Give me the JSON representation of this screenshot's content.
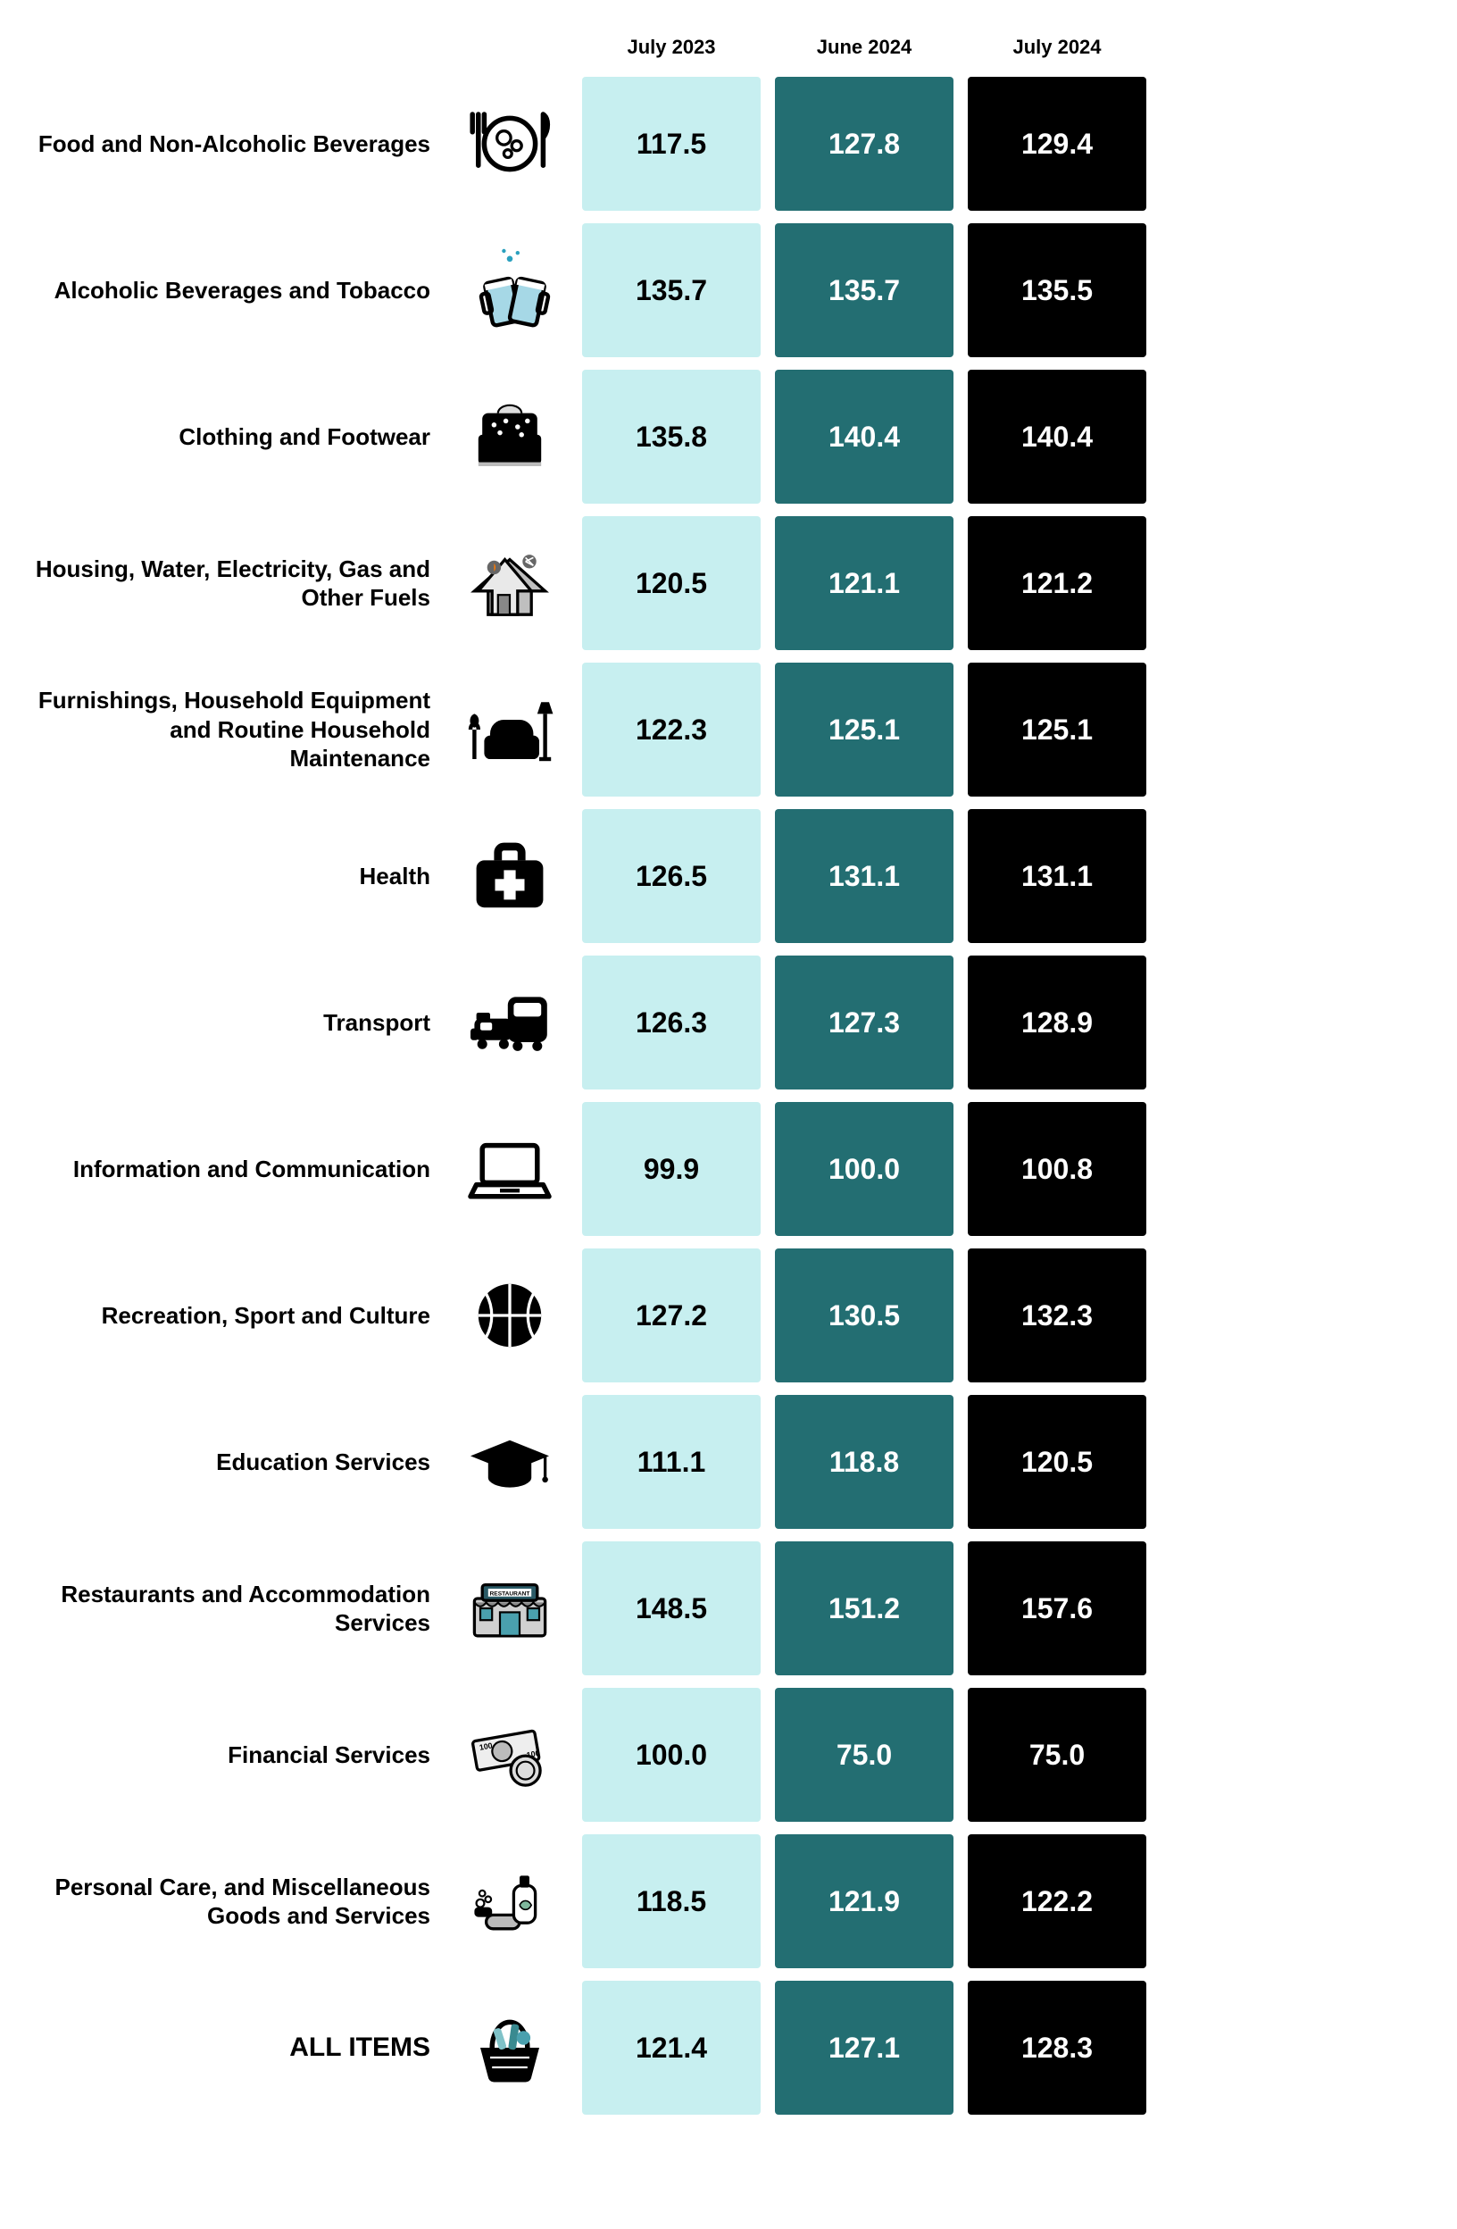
{
  "type": "table",
  "background_color": "#ffffff",
  "columns": [
    {
      "key": "jul2023",
      "label": "July 2023",
      "bg": "#c7eff0",
      "text": "#000000"
    },
    {
      "key": "jun2024",
      "label": "June 2024",
      "bg": "#236e72",
      "text": "#ffffff"
    },
    {
      "key": "jul2024",
      "label": "July 2024",
      "bg": "#000000",
      "text": "#ffffff"
    }
  ],
  "label_fontsize": 26,
  "value_fontsize": 32,
  "header_fontsize": 22,
  "rows": [
    {
      "label": "Food and Non-Alcoholic Beverages",
      "icon": "food",
      "jul2023": "117.5",
      "jun2024": "127.8",
      "jul2024": "129.4"
    },
    {
      "label": "Alcoholic Beverages and Tobacco",
      "icon": "beer",
      "jul2023": "135.7",
      "jun2024": "135.7",
      "jul2024": "135.5"
    },
    {
      "label": "Clothing and Footwear",
      "icon": "clothes",
      "jul2023": "135.8",
      "jun2024": "140.4",
      "jul2024": "140.4"
    },
    {
      "label": "Housing, Water, Electricity, Gas and Other Fuels",
      "icon": "house",
      "jul2023": "120.5",
      "jun2024": "121.1",
      "jul2024": "121.2"
    },
    {
      "label": "Furnishings, Household Equipment and Routine Household Maintenance",
      "icon": "sofa",
      "jul2023": "122.3",
      "jun2024": "125.1",
      "jul2024": "125.1"
    },
    {
      "label": "Health",
      "icon": "health",
      "jul2023": "126.5",
      "jun2024": "131.1",
      "jul2024": "131.1"
    },
    {
      "label": "Transport",
      "icon": "transport",
      "jul2023": "126.3",
      "jun2024": "127.3",
      "jul2024": "128.9"
    },
    {
      "label": "Information and Communication",
      "icon": "laptop",
      "jul2023": "99.9",
      "jun2024": "100.0",
      "jul2024": "100.8"
    },
    {
      "label": "Recreation, Sport and Culture",
      "icon": "ball",
      "jul2023": "127.2",
      "jun2024": "130.5",
      "jul2024": "132.3"
    },
    {
      "label": "Education Services",
      "icon": "grad",
      "jul2023": "111.1",
      "jun2024": "118.8",
      "jul2024": "120.5"
    },
    {
      "label": "Restaurants and Accommodation Services",
      "icon": "restaurant",
      "jul2023": "148.5",
      "jun2024": "151.2",
      "jul2024": "157.6"
    },
    {
      "label": "Financial Services",
      "icon": "money",
      "jul2023": "100.0",
      "jun2024": "75.0",
      "jul2024": "75.0"
    },
    {
      "label": "Personal Care, and Miscellaneous Goods and Services",
      "icon": "personalcare",
      "jul2023": "118.5",
      "jun2024": "121.9",
      "jul2024": "122.2"
    },
    {
      "label": "ALL ITEMS",
      "icon": "basket",
      "jul2023": "121.4",
      "jun2024": "127.1",
      "jul2024": "128.3",
      "all": true
    }
  ]
}
